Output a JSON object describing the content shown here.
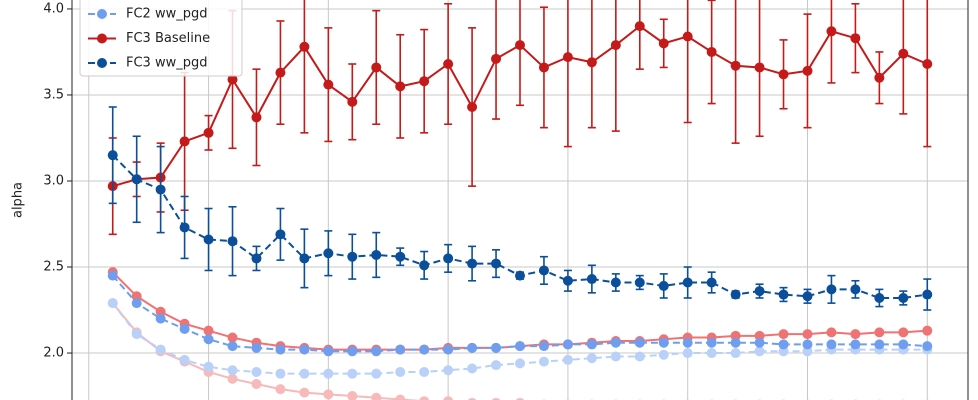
{
  "chart_data": {
    "type": "line",
    "y_label": "alpha",
    "x": [
      1,
      2,
      3,
      4,
      5,
      6,
      7,
      8,
      9,
      10,
      11,
      12,
      13,
      14,
      15,
      16,
      17,
      18,
      19,
      20,
      21,
      22,
      23,
      24,
      25,
      26,
      27,
      28,
      29,
      30,
      31,
      32,
      33,
      34,
      35
    ],
    "xlim": [
      -0.7,
      36.7
    ],
    "xticks": [
      0,
      5,
      10,
      15,
      20,
      25,
      30,
      35
    ],
    "ylim": [
      1.727,
      4.052
    ],
    "yticks": [
      {
        "value": 2,
        "label": "2.0"
      },
      {
        "value": 2.5,
        "label": "2.5"
      },
      {
        "value": 3,
        "label": "3.0"
      },
      {
        "value": 3.5,
        "label": "3.5"
      },
      {
        "value": 4,
        "label": "4.0"
      }
    ],
    "grid": true,
    "legend": "upper left",
    "series": [
      {
        "color": "#f7b9b9",
        "linestyle": "solid",
        "values": [
          2.29,
          2.12,
          2.01,
          1.95,
          1.89,
          1.85,
          1.82,
          1.79,
          1.77,
          1.76,
          1.75,
          1.74,
          1.73,
          1.72,
          1.72,
          1.71,
          1.71,
          1.71,
          1.7,
          1.7,
          1.7,
          1.7,
          1.7,
          1.7,
          1.7,
          1.7,
          1.7,
          1.7,
          1.7,
          1.7,
          1.7,
          1.7,
          1.7,
          1.7,
          1.7
        ]
      },
      {
        "color": "#b9d0f8",
        "linestyle": "dashed",
        "values": [
          2.29,
          2.11,
          2.02,
          1.96,
          1.92,
          1.9,
          1.89,
          1.88,
          1.88,
          1.88,
          1.88,
          1.88,
          1.89,
          1.89,
          1.9,
          1.91,
          1.93,
          1.94,
          1.95,
          1.96,
          1.97,
          1.98,
          1.98,
          1.99,
          2.0,
          2.0,
          2.0,
          2.01,
          2.01,
          2.01,
          2.02,
          2.02,
          2.02,
          2.02,
          2.02
        ]
      },
      {
        "color": "#f07272",
        "linestyle": "solid",
        "values": [
          2.47,
          2.33,
          2.24,
          2.17,
          2.13,
          2.09,
          2.06,
          2.04,
          2.03,
          2.02,
          2.02,
          2.02,
          2.02,
          2.02,
          2.03,
          2.03,
          2.03,
          2.04,
          2.05,
          2.05,
          2.06,
          2.07,
          2.07,
          2.08,
          2.09,
          2.09,
          2.1,
          2.1,
          2.11,
          2.11,
          2.12,
          2.11,
          2.12,
          2.12,
          2.13
        ]
      },
      {
        "name": "FC2 ww_pgd",
        "color": "#6f9ef0",
        "linestyle": "dashed",
        "values": [
          2.45,
          2.29,
          2.2,
          2.14,
          2.08,
          2.04,
          2.03,
          2.02,
          2.02,
          2.01,
          2.01,
          2.01,
          2.02,
          2.02,
          2.02,
          2.03,
          2.03,
          2.04,
          2.04,
          2.05,
          2.05,
          2.06,
          2.06,
          2.06,
          2.06,
          2.06,
          2.06,
          2.06,
          2.05,
          2.05,
          2.05,
          2.05,
          2.05,
          2.05,
          2.04
        ]
      },
      {
        "name": "FC3 Baseline",
        "color": "#c41a1a",
        "linestyle": "solid",
        "values": [
          2.97,
          3.01,
          3.02,
          3.23,
          3.28,
          3.59,
          3.37,
          3.63,
          3.78,
          3.56,
          3.46,
          3.66,
          3.55,
          3.58,
          3.68,
          3.43,
          3.71,
          3.79,
          3.66,
          3.72,
          3.69,
          3.79,
          3.9,
          3.8,
          3.84,
          3.75,
          3.67,
          3.66,
          3.62,
          3.64,
          3.87,
          3.83,
          3.6,
          3.74,
          3.68
        ],
        "errors": [
          0.28,
          0.1,
          0.2,
          0.4,
          0.1,
          0.4,
          0.28,
          0.3,
          0.5,
          0.33,
          0.22,
          0.33,
          0.3,
          0.3,
          0.35,
          0.46,
          0.35,
          0.35,
          0.35,
          0.52,
          0.38,
          0.5,
          0.25,
          0.14,
          0.5,
          0.3,
          0.45,
          0.4,
          0.2,
          0.33,
          0.3,
          0.2,
          0.15,
          0.35,
          0.48
        ]
      },
      {
        "name": "FC3 ww_pgd",
        "color": "#0b4f9a",
        "linestyle": "dashed",
        "values": [
          3.15,
          3.01,
          2.95,
          2.73,
          2.66,
          2.65,
          2.55,
          2.69,
          2.55,
          2.58,
          2.56,
          2.57,
          2.56,
          2.51,
          2.55,
          2.52,
          2.52,
          2.45,
          2.48,
          2.42,
          2.43,
          2.41,
          2.41,
          2.39,
          2.41,
          2.41,
          2.34,
          2.36,
          2.34,
          2.33,
          2.37,
          2.37,
          2.32,
          2.32,
          2.34
        ],
        "errors": [
          0.28,
          0.25,
          0.25,
          0.18,
          0.18,
          0.2,
          0.07,
          0.15,
          0.17,
          0.13,
          0.13,
          0.13,
          0.05,
          0.08,
          0.08,
          0.1,
          0.08,
          0.02,
          0.08,
          0.06,
          0.08,
          0.05,
          0.04,
          0.07,
          0.09,
          0.06,
          0.02,
          0.04,
          0.04,
          0.04,
          0.08,
          0.05,
          0.05,
          0.04,
          0.09
        ]
      }
    ]
  }
}
